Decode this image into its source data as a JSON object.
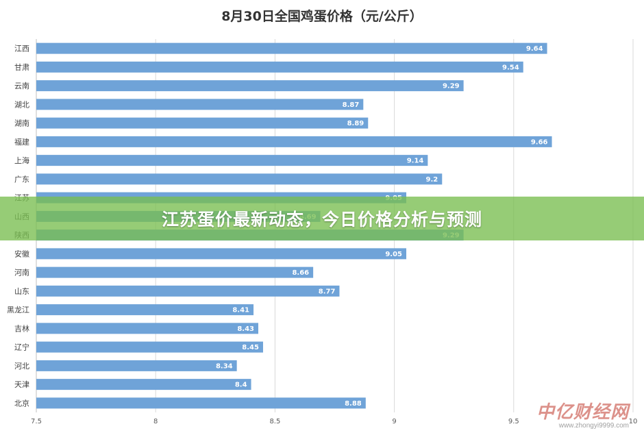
{
  "chart_data": {
    "type": "bar",
    "orientation": "horizontal",
    "title": "8月30日全国鸡蛋价格（元/公斤）",
    "categories": [
      "江西",
      "甘肃",
      "云南",
      "湖北",
      "湖南",
      "福建",
      "上海",
      "广东",
      "江苏",
      "山西",
      "陕西",
      "安徽",
      "河南",
      "山东",
      "黑龙江",
      "吉林",
      "辽宁",
      "河北",
      "天津",
      "北京"
    ],
    "values": [
      9.64,
      9.54,
      9.29,
      8.87,
      8.89,
      9.66,
      9.14,
      9.2,
      9.05,
      8.69,
      9.29,
      9.05,
      8.66,
      8.77,
      8.41,
      8.43,
      8.45,
      8.34,
      8.4,
      8.88
    ],
    "value_labels": [
      "9.64",
      "9.54",
      "9.29",
      "8.87",
      "8.89",
      "9.66",
      "9.14",
      "9.2",
      "9.05",
      "8.69",
      "9.29",
      "9.05",
      "8.66",
      "8.77",
      "8.41",
      "8.43",
      "8.45",
      "8.34",
      "8.4",
      "8.88"
    ],
    "xlim": [
      7.5,
      10
    ],
    "xticks": [
      "7.5",
      "8",
      "8.5",
      "9",
      "9.5",
      "10"
    ],
    "grid": true,
    "bar_color": "#6fa3d8",
    "legend": "none"
  },
  "banner": {
    "text": "江苏蛋价最新动态，今日价格分析与预测",
    "color": "#78be50"
  },
  "watermark": {
    "logo": "中亿财经网",
    "url": "www.zhongyi9999.com"
  }
}
